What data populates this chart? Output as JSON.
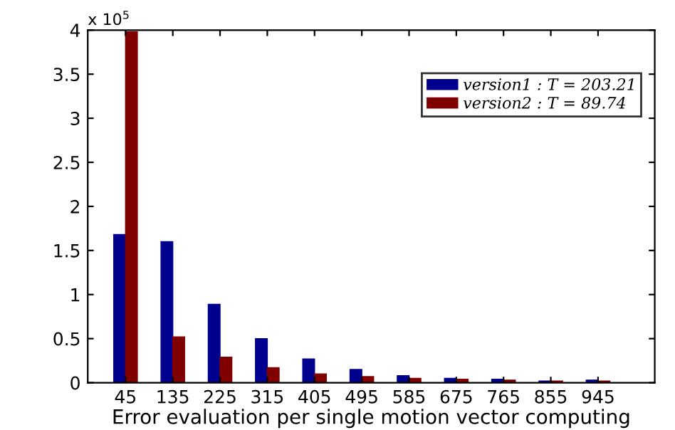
{
  "chart_data": {
    "type": "bar",
    "xlabel": "Error evaluation per single motion vector computing",
    "categories": [
      "45",
      "135",
      "225",
      "315",
      "405",
      "495",
      "585",
      "675",
      "765",
      "855",
      "945"
    ],
    "series": [
      {
        "name": "version1 : T = 203.21",
        "color": "#00008f",
        "values": [
          1.68,
          1.6,
          0.89,
          0.5,
          0.27,
          0.15,
          0.08,
          0.05,
          0.04,
          0.02,
          0.03
        ]
      },
      {
        "name": "version2 : T = 89.74",
        "color": "#800000",
        "values": [
          3.98,
          0.52,
          0.29,
          0.17,
          0.1,
          0.07,
          0.05,
          0.04,
          0.03,
          0.02,
          0.02
        ]
      }
    ],
    "ylim": [
      0,
      4
    ],
    "yticks": [
      0,
      0.5,
      1,
      1.5,
      2,
      2.5,
      3,
      3.5,
      4
    ],
    "annotations": [
      "x 10$^{5}$"
    ],
    "grid": false,
    "legend": "top right"
  }
}
